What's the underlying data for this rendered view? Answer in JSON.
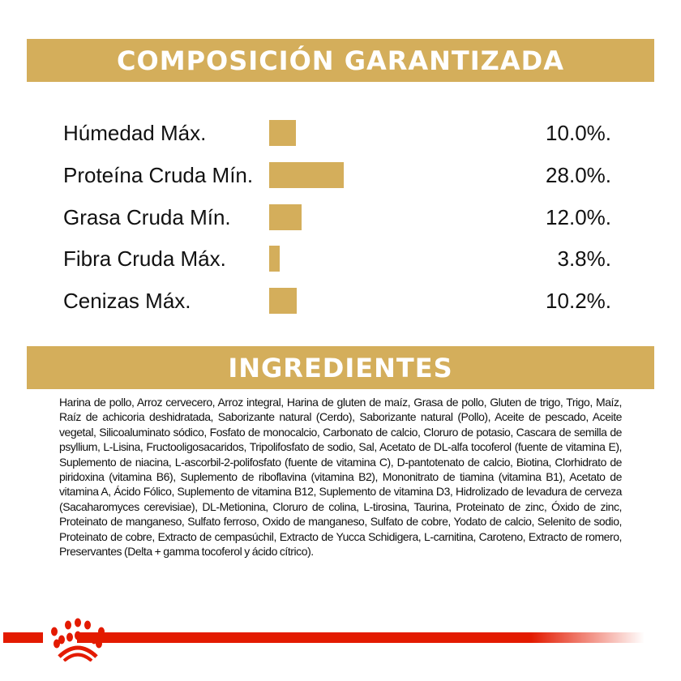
{
  "composition": {
    "title": "COMPOSICIÓN GARANTIZADA",
    "rows": [
      {
        "label": "Húmedad Máx.",
        "value": "10.0%.",
        "percent": 10.0
      },
      {
        "label": "Proteína Cruda Mín.",
        "value": "28.0%.",
        "percent": 28.0
      },
      {
        "label": "Grasa Cruda Mín.",
        "value": "12.0%.",
        "percent": 12.0
      },
      {
        "label": "Fibra Cruda Máx.",
        "value": "3.8%.",
        "percent": 3.8
      },
      {
        "label": "Cenizas Máx.",
        "value": "10.2%.",
        "percent": 10.2
      }
    ]
  },
  "ingredients": {
    "title": "INGREDIENTES",
    "text": "Harina de pollo, Arroz cervecero, Arroz integral, Harina de gluten de maíz, Grasa de pollo, Gluten de trigo, Trigo, Maíz, Raíz de achicoria deshidratada, Saborizante natural (Cerdo), Saborizante natural (Pollo), Aceite de pescado, Aceite vegetal, Silicoaluminato sódico, Fosfato de monocalcio, Carbonato de calcio, Cloruro de potasio, Cascara de semilla de psyllium, L-Lisina, Fructooligosacaridos, Tripolifosfato de sodio, Sal, Acetato de DL-alfa tocoferol (fuente de vitamina E), Suplemento de niacina, L-ascorbil-2-polifosfato (fuente de vitamina C), D-pantotenato de calcio, Biotina, Clorhidrato de piridoxina (vitamina B6), Suplemento de riboflavina (vitamina B2), Mononitrato de tiamina (vitamina B1), Acetato de vitamina A, Ácido Fólico, Suplemento de vitamina B12, Suplemento de vitamina D3, Hidrolizado de levadura de cerveza (Sacaharomyces cerevisiae), DL-Metionina, Cloruro de colina, L-tirosina, Taurina, Proteinato de zinc, Óxido de zinc, Proteinato de manganeso, Sulfato ferroso, Oxido de manganeso, Sulfato de cobre, Yodato de calcio, Selenito de sodio, Proteinato de cobre, Extracto de cempasúchil, Extracto de Yucca Schidigera, L-carnitina, Caroteno, Extracto de romero, Preservantes (Delta + gamma tocoferol y ácido cítrico)."
  },
  "colors": {
    "gold": "#D4AE5B",
    "brand_red": "#E31A00"
  },
  "icons": {
    "logo": "royal-canin-crown-icon"
  }
}
